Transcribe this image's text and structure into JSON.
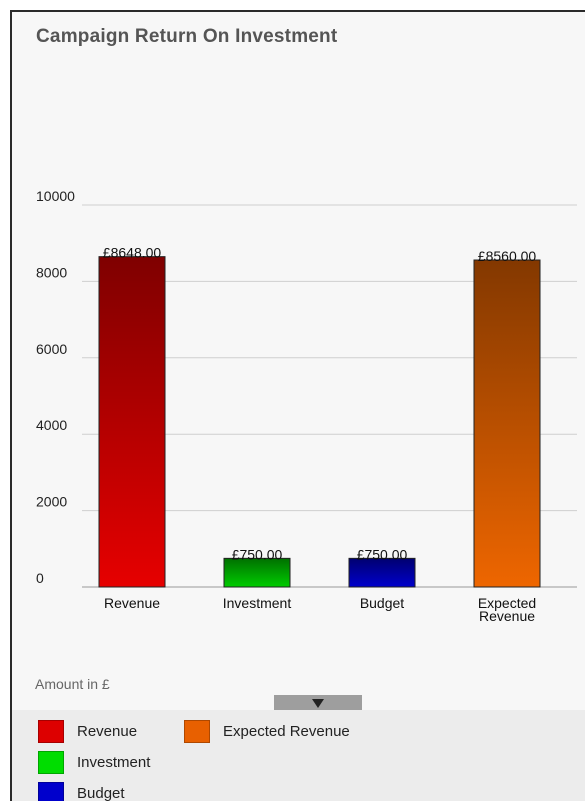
{
  "title": "Campaign Return On Investment",
  "chart_data": {
    "type": "bar",
    "categories": [
      "Revenue",
      "Investment",
      "Budget",
      "Expected Revenue"
    ],
    "category_lines": [
      [
        "Revenue"
      ],
      [
        "Investment"
      ],
      [
        "Budget"
      ],
      [
        "Expected",
        "Revenue"
      ]
    ],
    "values": [
      8648.0,
      750.0,
      750.0,
      8560.0
    ],
    "data_labels": [
      "£8648.00",
      "£750.00",
      "£750.00",
      "£8560.00"
    ],
    "colors": [
      "#e60000",
      "#00cc00",
      "#0000cc",
      "#ee6600"
    ],
    "ylim": [
      0,
      10000
    ],
    "y_ticks": [
      0,
      2000,
      4000,
      6000,
      8000,
      10000
    ],
    "grid": true,
    "xlabel": "Amount in £",
    "legend_position": "bottom"
  },
  "legend": [
    {
      "label": "Revenue",
      "color": "#dd0000"
    },
    {
      "label": "Expected Revenue",
      "color": "#e86000"
    },
    {
      "label": "Investment",
      "color": "#00dd00"
    },
    {
      "label": "Budget",
      "color": "#0000cc"
    }
  ]
}
